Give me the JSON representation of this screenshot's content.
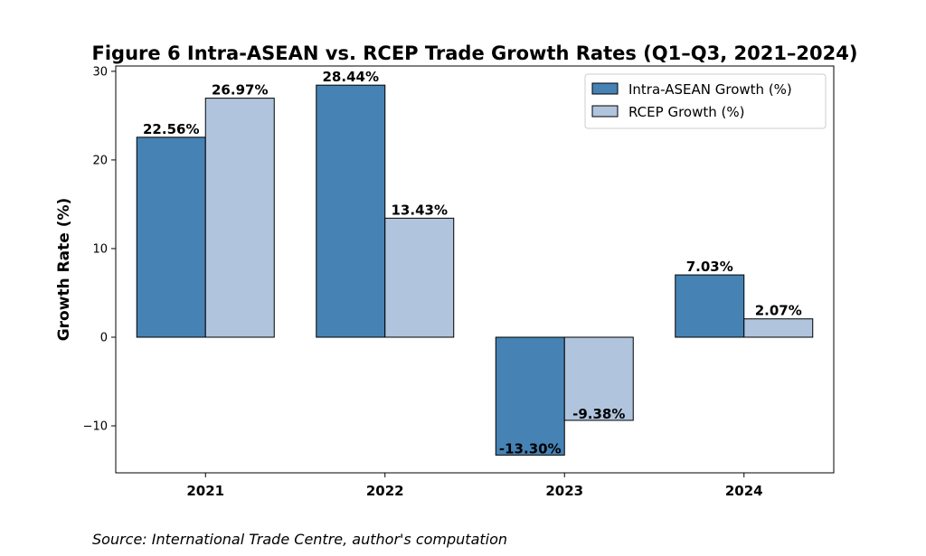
{
  "chart_data": {
    "type": "bar",
    "title": "Figure 6  Intra-ASEAN vs. RCEP Trade Growth Rates (Q1–Q3, 2021–2024)",
    "xlabel": "",
    "ylabel": "Growth Rate (%)",
    "categories": [
      "2021",
      "2022",
      "2023",
      "2024"
    ],
    "series": [
      {
        "name": "Intra-ASEAN Growth (%)",
        "color": "#4682b4",
        "values": [
          22.56,
          28.44,
          -13.3,
          7.03
        ],
        "labels": [
          "22.56%",
          "28.44%",
          "-13.30%",
          "7.03%"
        ]
      },
      {
        "name": "RCEP Growth (%)",
        "color": "#b0c4de",
        "values": [
          26.97,
          13.43,
          -9.38,
          2.07
        ],
        "labels": [
          "26.97%",
          "13.43%",
          "-9.38%",
          "2.07%"
        ]
      }
    ],
    "ylim": [
      -15.3,
      30.6
    ],
    "yticks": [
      -10,
      0,
      10,
      20,
      30
    ],
    "ytick_labels": [
      "−10",
      "0",
      "10",
      "20",
      "30"
    ],
    "grid": false,
    "legend_position": "top-right",
    "source": "Source: International Trade Centre, author's computation"
  }
}
